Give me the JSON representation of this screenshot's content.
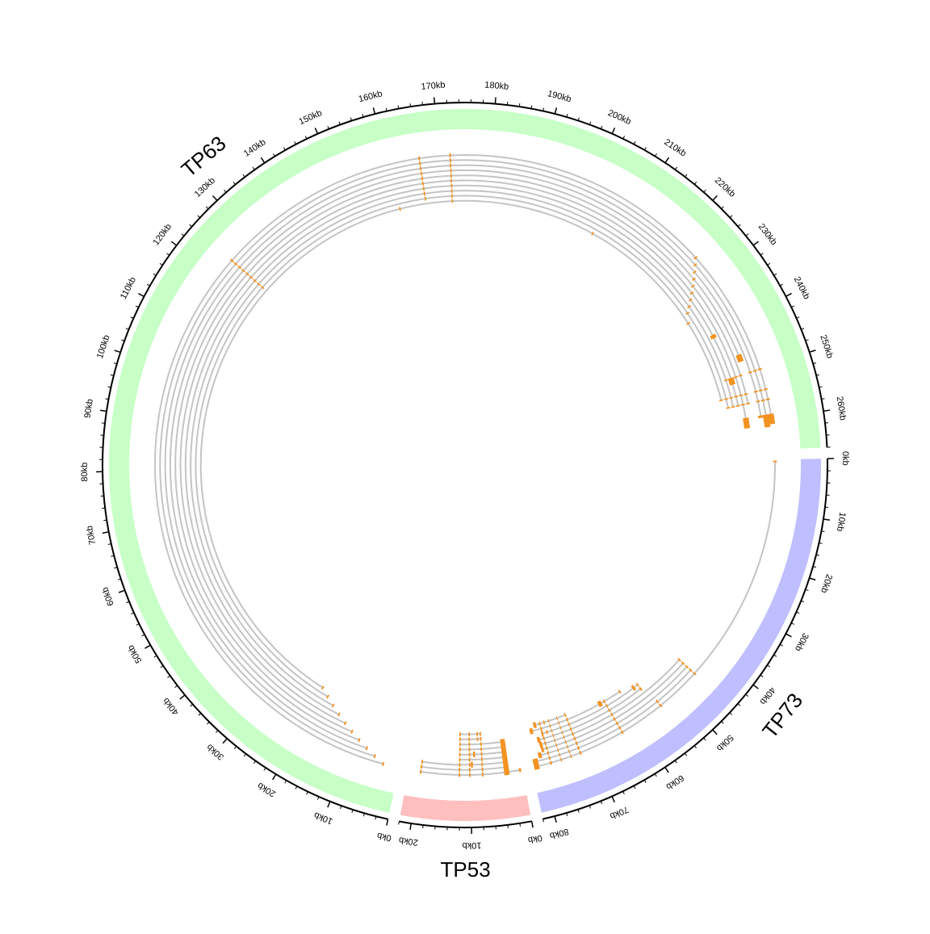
{
  "chart_data": {
    "type": "circos",
    "title": "",
    "sectors": [
      {
        "name": "TP73",
        "label": "TP73",
        "length_kb": 82,
        "color": "#bfbfff",
        "ticks": [
          "0kb",
          "10kb",
          "20kb",
          "30kb",
          "40kb",
          "50kb",
          "60kb",
          "70kb",
          "80kb"
        ],
        "tracks": [
          {
            "exons": [
              [
                0.2,
                0.5
              ],
              [
                45,
                45.3
              ],
              [
                54,
                54.3
              ],
              [
                63,
                63.3
              ],
              [
                72,
                72.3
              ],
              [
                74,
                74.2
              ],
              [
                76,
                76.2
              ],
              [
                78,
                78.3
              ],
              [
                80.5,
                81.5
              ]
            ]
          },
          {
            "exons": [
              [
                45,
                45.3
              ],
              [
                54,
                54.3
              ],
              [
                63,
                63.3
              ],
              [
                72,
                72.3
              ],
              [
                74,
                74.2
              ],
              [
                76,
                76.2
              ],
              [
                78,
                78.3
              ],
              [
                80.5,
                81.5
              ]
            ]
          },
          {
            "exons": [
              [
                45,
                45.3
              ],
              [
                63,
                63.3
              ],
              [
                72,
                72.3
              ],
              [
                74,
                74.2
              ],
              [
                76,
                76.2
              ],
              [
                78,
                78.3
              ],
              [
                79.5,
                80.2
              ]
            ]
          },
          {
            "exons": [
              [
                45,
                45.3
              ],
              [
                63,
                63.3
              ],
              [
                72,
                72.3
              ],
              [
                74,
                74.2
              ],
              [
                76,
                76.2
              ],
              [
                78,
                78.3
              ],
              [
                78.8,
                79.3
              ]
            ]
          },
          {
            "exons": [
              [
                45,
                45.3
              ],
              [
                63,
                63.3
              ],
              [
                72,
                72.3
              ],
              [
                74,
                74.2
              ],
              [
                76,
                76.2
              ],
              [
                78,
                78.3
              ],
              [
                78.8,
                79.4
              ]
            ]
          },
          {
            "exons": [
              [
                55,
                55.4
              ],
              [
                63,
                63.3
              ],
              [
                72,
                72.3
              ],
              [
                74,
                74.2
              ],
              [
                76,
                76.2
              ],
              [
                78,
                78.3
              ],
              [
                79,
                79.6
              ]
            ]
          },
          {
            "exons": [
              [
                55,
                55.3
              ],
              [
                56,
                56.5
              ],
              [
                63,
                63.3
              ],
              [
                72,
                72.3
              ],
              [
                74,
                74.2
              ],
              [
                76,
                76.2
              ],
              [
                77,
                77.3
              ],
              [
                78,
                78.4
              ]
            ]
          },
          {
            "exons": [
              [
                59,
                59.3
              ],
              [
                63,
                63.3
              ],
              [
                63.8,
                64.6
              ],
              [
                72,
                72.3
              ],
              [
                74,
                74.2
              ],
              [
                76,
                76.2
              ],
              [
                78,
                78.3
              ],
              [
                80,
                80.7
              ]
            ]
          },
          {
            "exons": [
              [
                72,
                72.3
              ],
              [
                74,
                74.2
              ],
              [
                76,
                76.2
              ],
              [
                77,
                77.3
              ],
              [
                78,
                78.3
              ],
              [
                79,
                79.6
              ]
            ]
          }
        ]
      },
      {
        "name": "TP53",
        "label": "TP53",
        "length_kb": 22,
        "color": "#ffbfbf",
        "ticks": [
          "0kb",
          "10kb",
          "20kb"
        ],
        "tracks": [
          {
            "exons": [
              [
                0.2,
                0.6
              ],
              [
                2.5,
                3.5
              ],
              [
                7.5,
                7.8
              ],
              [
                10,
                10.3
              ],
              [
                12,
                12.3
              ],
              [
                19.5,
                19.8
              ]
            ]
          },
          {
            "exons": [
              [
                2.5,
                3.5
              ],
              [
                7.5,
                7.8
              ],
              [
                10,
                10.3
              ],
              [
                12,
                12.3
              ],
              [
                19.5,
                19.8
              ]
            ]
          },
          {
            "exons": [
              [
                2.5,
                3.5
              ],
              [
                7.5,
                7.8
              ],
              [
                9.5,
                9.9
              ],
              [
                10,
                10.3
              ],
              [
                12,
                12.3
              ],
              [
                19.5,
                19.8
              ]
            ]
          },
          {
            "exons": [
              [
                2.5,
                3.5
              ],
              [
                7.5,
                7.8
              ],
              [
                10,
                10.3
              ],
              [
                12,
                12.3
              ]
            ]
          },
          {
            "exons": [
              [
                2.5,
                3.5
              ],
              [
                7.5,
                7.8
              ],
              [
                9,
                9.4
              ],
              [
                10,
                10.3
              ],
              [
                12,
                12.3
              ]
            ]
          },
          {
            "exons": [
              [
                2.5,
                3.5
              ],
              [
                7.5,
                7.8
              ],
              [
                10,
                10.3
              ],
              [
                12,
                12.3
              ]
            ]
          },
          {
            "exons": [
              [
                2.5,
                3.5
              ],
              [
                7.5,
                7.8
              ],
              [
                10,
                10.3
              ],
              [
                12,
                12.3
              ]
            ]
          },
          {
            "exons": [
              [
                7.5,
                7.8
              ],
              [
                8.2,
                8.5
              ],
              [
                10,
                10.3
              ],
              [
                12,
                12.3
              ]
            ]
          },
          {
            "exons": [
              [
                7.5,
                7.8
              ],
              [
                8.2,
                8.5
              ],
              [
                10,
                10.3
              ],
              [
                12,
                12.3
              ]
            ]
          }
        ]
      },
      {
        "name": "TP63",
        "label": "TP63",
        "length_kb": 266,
        "color": "#c7ffc7",
        "ticks": [
          "0kb",
          "10kb",
          "20kb",
          "30kb",
          "40kb",
          "50kb",
          "60kb",
          "70kb",
          "80kb",
          "90kb",
          "100kb",
          "110kb",
          "120kb",
          "130kb",
          "140kb",
          "150kb",
          "160kb",
          "170kb",
          "180kb",
          "190kb",
          "200kb",
          "210kb",
          "220kb",
          "230kb",
          "240kb",
          "250kb",
          "260kb"
        ],
        "tracks": [
          {
            "exons": [
              [
                3,
                3.3
              ],
              [
                124,
                124.3
              ],
              [
                166,
                166.3
              ],
              [
                172,
                172.3
              ],
              [
                225,
                225.3
              ],
              [
                250,
                250.3
              ],
              [
                254,
                254.3
              ],
              [
                256,
                256.3
              ],
              [
                259,
                261
              ]
            ]
          },
          {
            "exons": [
              [
                5,
                5.3
              ],
              [
                124,
                124.3
              ],
              [
                166,
                166.3
              ],
              [
                172,
                172.3
              ],
              [
                226,
                226.3
              ],
              [
                250,
                250.3
              ],
              [
                254,
                254.3
              ],
              [
                256,
                256.3
              ],
              [
                259,
                261.5
              ]
            ]
          },
          {
            "exons": [
              [
                7,
                7.3
              ],
              [
                124,
                124.3
              ],
              [
                166,
                166.3
              ],
              [
                172,
                172.3
              ],
              [
                227,
                227.3
              ],
              [
                250,
                250.3
              ],
              [
                254,
                254.3
              ],
              [
                256,
                256.3
              ],
              [
                259,
                259.5
              ]
            ]
          },
          {
            "exons": [
              [
                9,
                9.3
              ],
              [
                124,
                124.3
              ],
              [
                166,
                166.3
              ],
              [
                172,
                172.3
              ],
              [
                228,
                228.3
              ],
              [
                246,
                247.5
              ]
            ]
          },
          {
            "exons": [
              [
                11,
                11.3
              ],
              [
                124,
                124.3
              ],
              [
                166,
                166.3
              ],
              [
                172,
                172.3
              ],
              [
                229,
                229.3
              ],
              [
                250,
                250.3
              ],
              [
                254,
                254.3
              ],
              [
                256,
                256.3
              ]
            ]
          },
          {
            "exons": [
              [
                13,
                13.3
              ],
              [
                124,
                124.3
              ],
              [
                166,
                166.3
              ],
              [
                172,
                172.3
              ],
              [
                230,
                230.3
              ],
              [
                250,
                250.3
              ],
              [
                254,
                254.3
              ],
              [
                256,
                256.3
              ],
              [
                259,
                261.2
              ]
            ]
          },
          {
            "exons": [
              [
                15,
                15.3
              ],
              [
                124,
                124.3
              ],
              [
                166,
                166.3
              ],
              [
                172,
                172.3
              ],
              [
                231,
                231.3
              ],
              [
                240,
                240.8
              ],
              [
                250,
                251.5
              ],
              [
                254,
                254.3
              ],
              [
                256,
                256.3
              ]
            ]
          },
          {
            "exons": [
              [
                17,
                17.3
              ],
              [
                124,
                124.3
              ],
              [
                166,
                166.3
              ],
              [
                172,
                172.3
              ],
              [
                232,
                232.3
              ],
              [
                250,
                250.3
              ],
              [
                254,
                254.3
              ],
              [
                256,
                256.3
              ]
            ]
          },
          {
            "exons": [
              [
                19,
                19.3
              ],
              [
                124,
                124.3
              ],
              [
                166,
                166.3
              ],
              [
                172,
                172.3
              ],
              [
                233,
                233.3
              ],
              [
                254,
                254.3
              ],
              [
                256,
                256.3
              ]
            ]
          },
          {
            "exons": [
              [
                21,
                21.3
              ],
              [
                160,
                160.3
              ],
              [
                172,
                172.3
              ],
              [
                205,
                205.3
              ],
              [
                235,
                235.3
              ],
              [
                254,
                254.3
              ]
            ]
          }
        ]
      }
    ],
    "colors": {
      "intron_line": "#c4c4c4",
      "exon": "#f39321",
      "axis": "#000000"
    }
  }
}
